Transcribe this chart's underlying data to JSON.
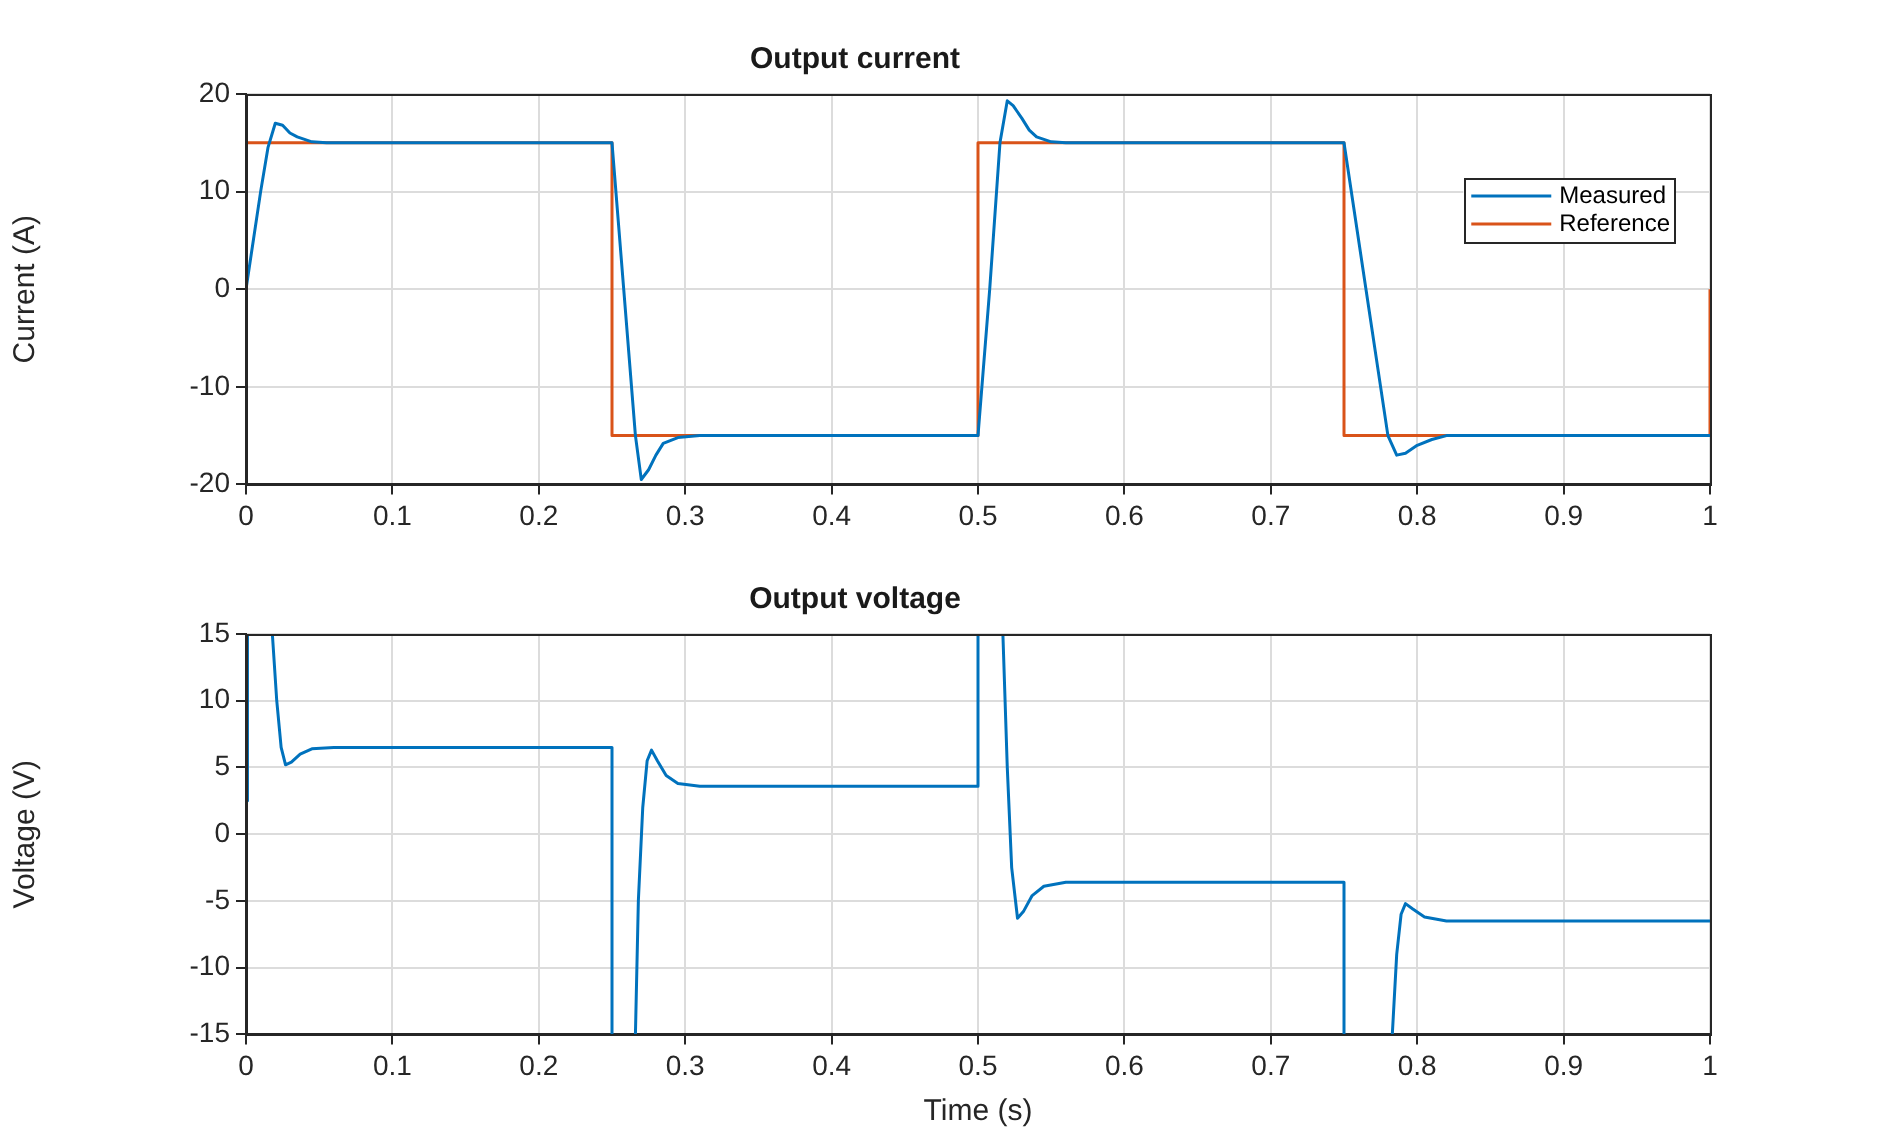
{
  "chart_data": [
    {
      "type": "line",
      "title": "Output current",
      "ylabel": "Current (A)",
      "xlim": [
        0,
        1
      ],
      "xticks": [
        0,
        0.1,
        0.2,
        0.3,
        0.4,
        0.5,
        0.6,
        0.7,
        0.8,
        0.9,
        1
      ],
      "ylim": [
        -20,
        20
      ],
      "yticks": [
        -20,
        -10,
        0,
        10,
        20
      ],
      "grid": true,
      "legend": "top right",
      "marker": "none",
      "series": [
        {
          "name": "Measured",
          "color": "#0072bd",
          "x": [
            0,
            0.01,
            0.015,
            0.02,
            0.025,
            0.03,
            0.035,
            0.045,
            0.055,
            0.25,
            0.258,
            0.266,
            0.27,
            0.275,
            0.28,
            0.285,
            0.295,
            0.31,
            0.5,
            0.508,
            0.515,
            0.52,
            0.524,
            0.53,
            0.535,
            0.54,
            0.55,
            0.56,
            0.75,
            0.765,
            0.78,
            0.786,
            0.792,
            0.8,
            0.81,
            0.82,
            1
          ],
          "values": [
            0,
            10,
            14.5,
            17,
            16.8,
            16,
            15.6,
            15.1,
            15,
            15,
            0,
            -15,
            -19.5,
            -18.5,
            -17,
            -15.8,
            -15.2,
            -15,
            -15,
            0,
            15,
            19.3,
            18.8,
            17.5,
            16.3,
            15.6,
            15.1,
            15,
            15,
            0,
            -15,
            -17,
            -16.8,
            -16,
            -15.4,
            -15,
            -15
          ]
        },
        {
          "name": "Reference",
          "color": "#d95319",
          "x": [
            0,
            0.25,
            0.25,
            0.5,
            0.5,
            0.75,
            0.75,
            1,
            1
          ],
          "values": [
            15,
            15,
            -15,
            -15,
            15,
            15,
            -15,
            -15,
            0
          ]
        }
      ]
    },
    {
      "type": "line",
      "title": "Output voltage",
      "xlabel": "Time (s)",
      "ylabel": "Voltage (V)",
      "xlim": [
        0,
        1
      ],
      "xticks": [
        0,
        0.1,
        0.2,
        0.3,
        0.4,
        0.5,
        0.6,
        0.7,
        0.8,
        0.9,
        1
      ],
      "ylim": [
        -15,
        15
      ],
      "yticks": [
        -15,
        -10,
        -5,
        0,
        5,
        10,
        15
      ],
      "grid": true,
      "marker": "none",
      "series": [
        {
          "color": "#0072bd",
          "x": [
            0,
            0.001,
            0.018,
            0.021,
            0.024,
            0.027,
            0.031,
            0.037,
            0.045,
            0.06,
            0.25,
            0.25,
            0.2505,
            0.266,
            0.268,
            0.271,
            0.274,
            0.277,
            0.281,
            0.287,
            0.295,
            0.31,
            0.5,
            0.5,
            0.517,
            0.52,
            0.523,
            0.527,
            0.531,
            0.537,
            0.545,
            0.56,
            0.75,
            0.75,
            0.7505,
            0.783,
            0.786,
            0.789,
            0.792,
            0.797,
            0.805,
            0.82,
            1
          ],
          "values": [
            2.5,
            15,
            15,
            10,
            6.5,
            5.2,
            5.4,
            6,
            6.4,
            6.5,
            6.5,
            -15,
            null,
            -15,
            -5,
            2,
            5.5,
            6.3,
            5.5,
            4.4,
            3.8,
            3.6,
            3.6,
            15,
            15,
            5,
            -2.5,
            -6.3,
            -5.8,
            -4.6,
            -3.9,
            -3.6,
            -3.6,
            -15,
            null,
            -15,
            -9,
            -6,
            -5.2,
            -5.6,
            -6.2,
            -6.5,
            -6.5
          ]
        }
      ]
    }
  ]
}
